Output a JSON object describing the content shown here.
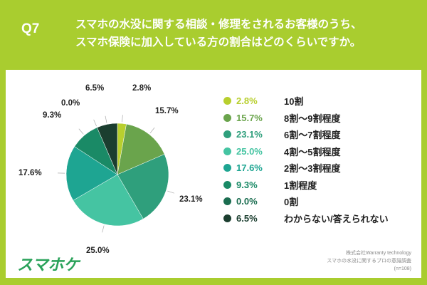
{
  "header": {
    "q": "Q7",
    "title_line1": "スマホの水没に関する相談・修理をされるお客様のうち、",
    "title_line2": "スマホ保険に加入している方の割合はどのくらいですか。"
  },
  "chart_data": {
    "type": "pie",
    "title": "スマホの水没に関する相談・修理をされるお客様のうち、スマホ保険に加入している方の割合はどのくらいですか。",
    "categories": [
      "10割",
      "8割〜9割程度",
      "6割〜7割程度",
      "4割〜5割程度",
      "2割〜3割程度",
      "1割程度",
      "0割",
      "わからない/答えられない"
    ],
    "values": [
      2.8,
      15.7,
      23.1,
      25.0,
      17.6,
      9.3,
      0.0,
      6.5
    ],
    "labels": [
      "2.8%",
      "15.7%",
      "23.1%",
      "25.0%",
      "17.6%",
      "9.3%",
      "0.0%",
      "6.5%"
    ],
    "colors": [
      "#b8cf2e",
      "#6aa44c",
      "#2f9f7c",
      "#45c4a2",
      "#1ea592",
      "#1a8a66",
      "#1b6d50",
      "#1b3e2f"
    ],
    "legend": "right"
  },
  "footer": {
    "logo": "スマホケ",
    "source1": "株式会社Warranty technology",
    "source2": "スマホの水没に関するプロの意識調査",
    "source3": "(n=108)"
  }
}
